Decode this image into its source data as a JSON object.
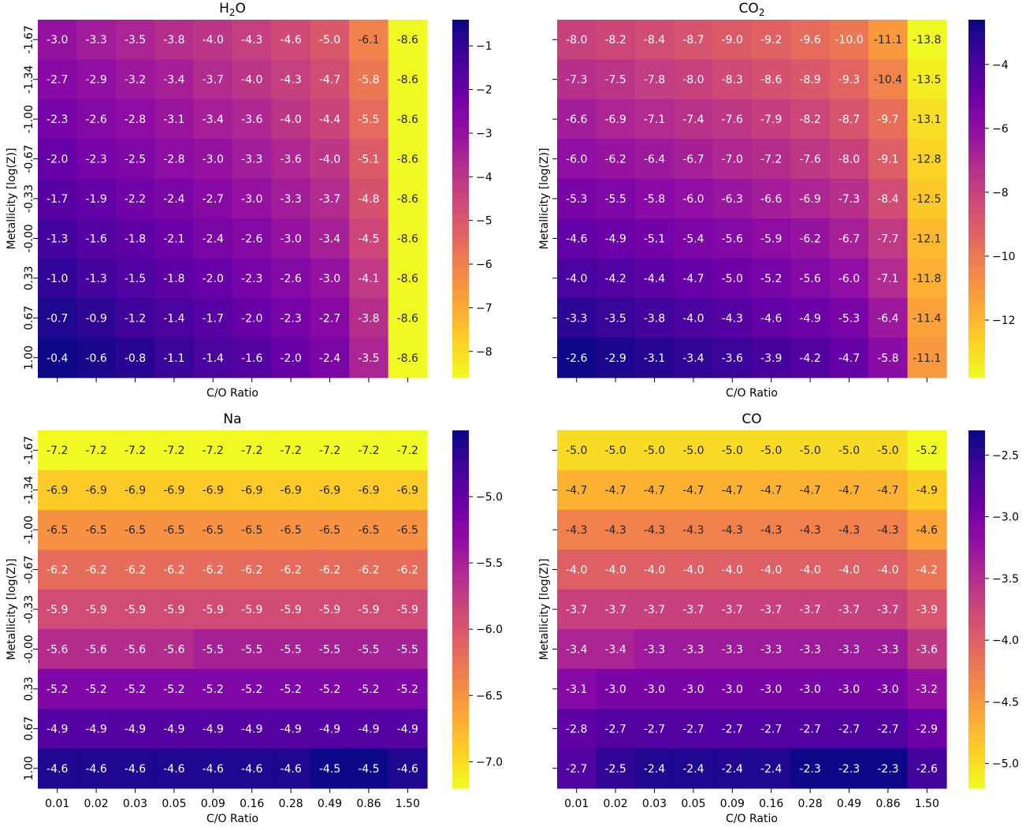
{
  "chart_data": [
    {
      "type": "heatmap",
      "title": "H2O",
      "title_main": "H",
      "title_sub": "2",
      "title_tail": "O",
      "xlabel": "C/O Ratio",
      "ylabel": "Metallicity [log(Z)]",
      "x_categories": [
        "0.01",
        "0.02",
        "0.03",
        "0.05",
        "0.09",
        "0.16",
        "0.28",
        "0.49",
        "0.86",
        "1.50"
      ],
      "y_categories": [
        "-1.67",
        "-1.34",
        "-1.00",
        "-0.67",
        "-0.33",
        "-0.00",
        "0.33",
        "0.67",
        "1.00"
      ],
      "colorscale": "plasma_r",
      "vmin": -8.6,
      "vmax": -0.4,
      "colorbar_ticks": [
        -1,
        -2,
        -3,
        -4,
        -5,
        -6,
        -7,
        -8
      ],
      "show_x_tick_labels": false,
      "show_y_tick_labels": true,
      "values": [
        [
          -3.0,
          -3.3,
          -3.5,
          -3.8,
          -4.0,
          -4.3,
          -4.6,
          -5.0,
          -6.1,
          -8.6
        ],
        [
          -2.7,
          -2.9,
          -3.2,
          -3.4,
          -3.7,
          -4.0,
          -4.3,
          -4.7,
          -5.8,
          -8.6
        ],
        [
          -2.3,
          -2.6,
          -2.8,
          -3.1,
          -3.4,
          -3.6,
          -4.0,
          -4.4,
          -5.5,
          -8.6
        ],
        [
          -2.0,
          -2.3,
          -2.5,
          -2.8,
          -3.0,
          -3.3,
          -3.6,
          -4.0,
          -5.1,
          -8.6
        ],
        [
          -1.7,
          -1.9,
          -2.2,
          -2.4,
          -2.7,
          -3.0,
          -3.3,
          -3.7,
          -4.8,
          -8.6
        ],
        [
          -1.3,
          -1.6,
          -1.8,
          -2.1,
          -2.4,
          -2.6,
          -3.0,
          -3.4,
          -4.5,
          -8.6
        ],
        [
          -1.0,
          -1.3,
          -1.5,
          -1.8,
          -2.0,
          -2.3,
          -2.6,
          -3.0,
          -4.1,
          -8.6
        ],
        [
          -0.7,
          -0.9,
          -1.2,
          -1.4,
          -1.7,
          -2.0,
          -2.3,
          -2.7,
          -3.8,
          -8.6
        ],
        [
          -0.4,
          -0.6,
          -0.8,
          -1.1,
          -1.4,
          -1.6,
          -2.0,
          -2.4,
          -3.5,
          -8.6
        ]
      ]
    },
    {
      "type": "heatmap",
      "title": "CO2",
      "title_main": "CO",
      "title_sub": "2",
      "title_tail": "",
      "xlabel": "C/O Ratio",
      "ylabel": "Metallicity [log(Z)]",
      "x_categories": [
        "0.01",
        "0.02",
        "0.03",
        "0.05",
        "0.09",
        "0.16",
        "0.28",
        "0.49",
        "0.86",
        "1.50"
      ],
      "y_categories": [
        "-1.67",
        "-1.34",
        "-1.00",
        "-0.67",
        "-0.33",
        "-0.00",
        "0.33",
        "0.67",
        "1.00"
      ],
      "colorscale": "plasma_r",
      "vmin": -13.8,
      "vmax": -2.6,
      "colorbar_ticks": [
        -4,
        -6,
        -8,
        -10,
        -12
      ],
      "show_x_tick_labels": false,
      "show_y_tick_labels": false,
      "values": [
        [
          -8.0,
          -8.2,
          -8.4,
          -8.7,
          -9.0,
          -9.2,
          -9.6,
          -10.0,
          -11.1,
          -13.8
        ],
        [
          -7.3,
          -7.5,
          -7.8,
          -8.0,
          -8.3,
          -8.6,
          -8.9,
          -9.3,
          -10.4,
          -13.5
        ],
        [
          -6.6,
          -6.9,
          -7.1,
          -7.4,
          -7.6,
          -7.9,
          -8.2,
          -8.7,
          -9.7,
          -13.1
        ],
        [
          -6.0,
          -6.2,
          -6.4,
          -6.7,
          -7.0,
          -7.2,
          -7.6,
          -8.0,
          -9.1,
          -12.8
        ],
        [
          -5.3,
          -5.5,
          -5.8,
          -6.0,
          -6.3,
          -6.6,
          -6.9,
          -7.3,
          -8.4,
          -12.5
        ],
        [
          -4.6,
          -4.9,
          -5.1,
          -5.4,
          -5.6,
          -5.9,
          -6.2,
          -6.7,
          -7.7,
          -12.1
        ],
        [
          -4.0,
          -4.2,
          -4.4,
          -4.7,
          -5.0,
          -5.2,
          -5.6,
          -6.0,
          -7.1,
          -11.8
        ],
        [
          -3.3,
          -3.5,
          -3.8,
          -4.0,
          -4.3,
          -4.6,
          -4.9,
          -5.3,
          -6.4,
          -11.4
        ],
        [
          -2.6,
          -2.9,
          -3.1,
          -3.4,
          -3.6,
          -3.9,
          -4.2,
          -4.7,
          -5.8,
          -11.1
        ]
      ]
    },
    {
      "type": "heatmap",
      "title": "Na",
      "title_main": "Na",
      "title_sub": "",
      "title_tail": "",
      "xlabel": "C/O Ratio",
      "ylabel": "Metallicity [log(Z)]",
      "x_categories": [
        "0.01",
        "0.02",
        "0.03",
        "0.05",
        "0.09",
        "0.16",
        "0.28",
        "0.49",
        "0.86",
        "1.50"
      ],
      "y_categories": [
        "-1.67",
        "-1.34",
        "-1.00",
        "-0.67",
        "-0.33",
        "-0.00",
        "0.33",
        "0.67",
        "1.00"
      ],
      "colorscale": "plasma_r",
      "vmin": -7.2,
      "vmax": -4.5,
      "colorbar_ticks": [
        -5.0,
        -5.5,
        -6.0,
        -6.5,
        -7.0
      ],
      "show_x_tick_labels": true,
      "show_y_tick_labels": true,
      "values": [
        [
          -7.2,
          -7.2,
          -7.2,
          -7.2,
          -7.2,
          -7.2,
          -7.2,
          -7.2,
          -7.2,
          -7.2
        ],
        [
          -6.9,
          -6.9,
          -6.9,
          -6.9,
          -6.9,
          -6.9,
          -6.9,
          -6.9,
          -6.9,
          -6.9
        ],
        [
          -6.5,
          -6.5,
          -6.5,
          -6.5,
          -6.5,
          -6.5,
          -6.5,
          -6.5,
          -6.5,
          -6.5
        ],
        [
          -6.2,
          -6.2,
          -6.2,
          -6.2,
          -6.2,
          -6.2,
          -6.2,
          -6.2,
          -6.2,
          -6.2
        ],
        [
          -5.9,
          -5.9,
          -5.9,
          -5.9,
          -5.9,
          -5.9,
          -5.9,
          -5.9,
          -5.9,
          -5.9
        ],
        [
          -5.6,
          -5.6,
          -5.6,
          -5.6,
          -5.5,
          -5.5,
          -5.5,
          -5.5,
          -5.5,
          -5.5
        ],
        [
          -5.2,
          -5.2,
          -5.2,
          -5.2,
          -5.2,
          -5.2,
          -5.2,
          -5.2,
          -5.2,
          -5.2
        ],
        [
          -4.9,
          -4.9,
          -4.9,
          -4.9,
          -4.9,
          -4.9,
          -4.9,
          -4.9,
          -4.9,
          -4.9
        ],
        [
          -4.6,
          -4.6,
          -4.6,
          -4.6,
          -4.6,
          -4.6,
          -4.6,
          -4.5,
          -4.5,
          -4.6
        ]
      ]
    },
    {
      "type": "heatmap",
      "title": "CO",
      "title_main": "CO",
      "title_sub": "",
      "title_tail": "",
      "xlabel": "C/O Ratio",
      "ylabel": "Metallicity [log(Z)]",
      "x_categories": [
        "0.01",
        "0.02",
        "0.03",
        "0.05",
        "0.09",
        "0.16",
        "0.28",
        "0.49",
        "0.86",
        "1.50"
      ],
      "y_categories": [
        "-1.67",
        "-1.34",
        "-1.00",
        "-0.67",
        "-0.33",
        "-0.00",
        "0.33",
        "0.67",
        "1.00"
      ],
      "colorscale": "plasma_r",
      "vmin": -5.2,
      "vmax": -2.3,
      "colorbar_ticks": [
        -2.5,
        -3.0,
        -3.5,
        -4.0,
        -4.5,
        -5.0
      ],
      "show_x_tick_labels": true,
      "show_y_tick_labels": false,
      "values": [
        [
          -5.0,
          -5.0,
          -5.0,
          -5.0,
          -5.0,
          -5.0,
          -5.0,
          -5.0,
          -5.0,
          -5.2
        ],
        [
          -4.7,
          -4.7,
          -4.7,
          -4.7,
          -4.7,
          -4.7,
          -4.7,
          -4.7,
          -4.7,
          -4.9
        ],
        [
          -4.3,
          -4.3,
          -4.3,
          -4.3,
          -4.3,
          -4.3,
          -4.3,
          -4.3,
          -4.3,
          -4.6
        ],
        [
          -4.0,
          -4.0,
          -4.0,
          -4.0,
          -4.0,
          -4.0,
          -4.0,
          -4.0,
          -4.0,
          -4.2
        ],
        [
          -3.7,
          -3.7,
          -3.7,
          -3.7,
          -3.7,
          -3.7,
          -3.7,
          -3.7,
          -3.7,
          -3.9
        ],
        [
          -3.4,
          -3.4,
          -3.3,
          -3.3,
          -3.3,
          -3.3,
          -3.3,
          -3.3,
          -3.3,
          -3.6
        ],
        [
          -3.1,
          -3.0,
          -3.0,
          -3.0,
          -3.0,
          -3.0,
          -3.0,
          -3.0,
          -3.0,
          -3.2
        ],
        [
          -2.8,
          -2.7,
          -2.7,
          -2.7,
          -2.7,
          -2.7,
          -2.7,
          -2.7,
          -2.7,
          -2.9
        ],
        [
          -2.7,
          -2.5,
          -2.4,
          -2.4,
          -2.4,
          -2.4,
          -2.3,
          -2.3,
          -2.3,
          -2.6
        ]
      ]
    }
  ]
}
